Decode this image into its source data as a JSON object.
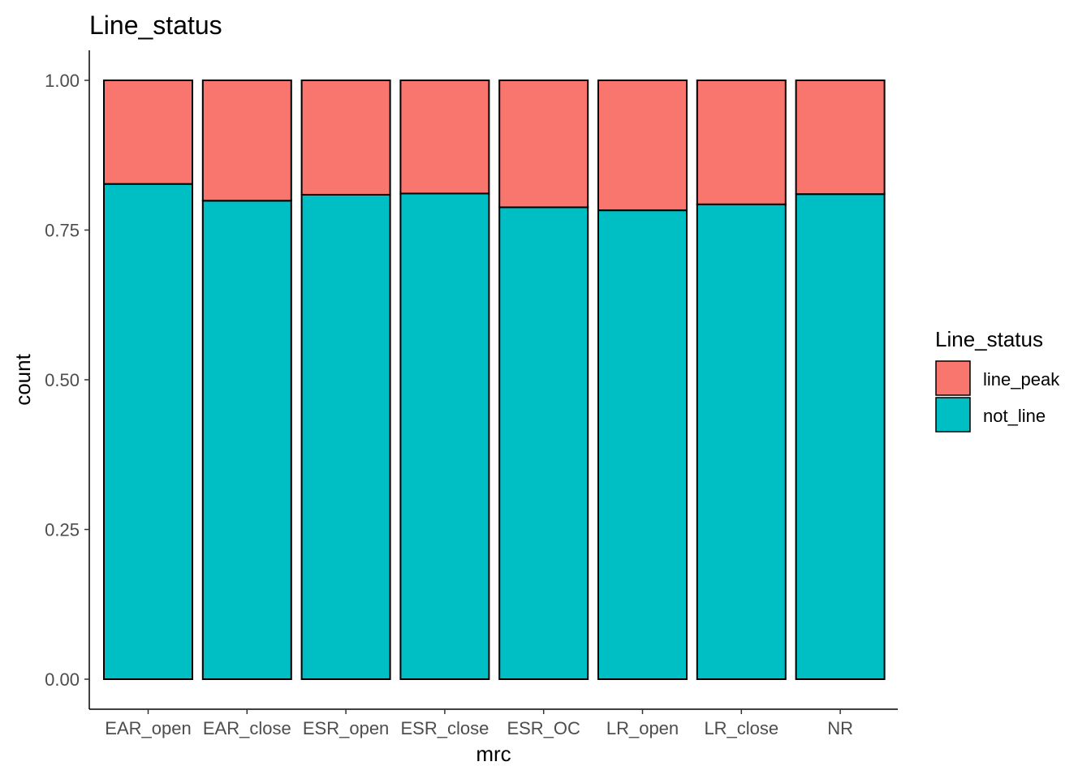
{
  "chart_data": {
    "type": "bar",
    "stacked": true,
    "title": "Line_status",
    "xlabel": "mrc",
    "ylabel": "count",
    "ylim": [
      0,
      1
    ],
    "yticks": [
      "0.00",
      "0.25",
      "0.50",
      "0.75",
      "1.00"
    ],
    "grid": false,
    "categories": [
      "EAR_open",
      "EAR_close",
      "ESR_open",
      "ESR_close",
      "ESR_OC",
      "LR_open",
      "LR_close",
      "NR"
    ],
    "series": [
      {
        "name": "not_line",
        "color": "#00BFC4",
        "values": [
          0.827,
          0.799,
          0.809,
          0.811,
          0.788,
          0.783,
          0.793,
          0.81
        ]
      },
      {
        "name": "line_peak",
        "color": "#F8766D",
        "values": [
          0.173,
          0.201,
          0.191,
          0.189,
          0.212,
          0.217,
          0.207,
          0.19
        ]
      }
    ],
    "legend": {
      "title": "Line_status",
      "position": "right",
      "items": [
        "line_peak",
        "not_line"
      ]
    }
  }
}
